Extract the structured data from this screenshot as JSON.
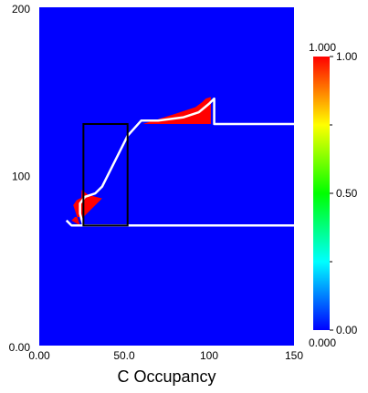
{
  "chart_data": {
    "type": "heatmap",
    "title": "",
    "xlabel": "C Occupancy",
    "ylabel": "",
    "xlim": [
      0,
      150
    ],
    "ylim": [
      0,
      200
    ],
    "x_ticks": [
      {
        "value": 0,
        "label": "0.00"
      },
      {
        "value": 50,
        "label": "50.0"
      },
      {
        "value": 100,
        "label": "100"
      },
      {
        "value": 150,
        "label": "150"
      }
    ],
    "y_ticks": [
      {
        "value": 0,
        "label": "0.00"
      },
      {
        "value": 100,
        "label": "100"
      },
      {
        "value": 200,
        "label": "200"
      }
    ],
    "background_value": 0.0,
    "colormap": [
      "#0000ff",
      "#00ffff",
      "#00ff00",
      "#ffff00",
      "#ff0000"
    ],
    "high_value_regions": [
      {
        "value": 1.0,
        "polygon": [
          [
            24,
            71
          ],
          [
            19,
            74
          ],
          [
            21,
            76
          ],
          [
            26,
            76
          ],
          [
            29,
            83
          ],
          [
            26,
            88
          ],
          [
            22,
            86
          ],
          [
            20,
            83
          ]
        ]
      },
      {
        "value": 1.0,
        "polygon": [
          [
            25,
            92
          ],
          [
            29,
            89
          ],
          [
            33,
            88
          ],
          [
            37,
            87
          ],
          [
            24,
            74
          ]
        ]
      },
      {
        "value": 1.0,
        "polygon": [
          [
            61,
            131
          ],
          [
            80,
            137
          ],
          [
            92,
            141
          ],
          [
            96,
            144
          ],
          [
            98,
            146
          ],
          [
            101,
            147
          ],
          [
            101,
            131
          ]
        ]
      }
    ],
    "boundary_line": [
      [
        16,
        74
      ],
      [
        19,
        71
      ],
      [
        26,
        71
      ],
      [
        24,
        78
      ],
      [
        24,
        84
      ],
      [
        27,
        88
      ],
      [
        33,
        90
      ],
      [
        37,
        94
      ],
      [
        52,
        124
      ],
      [
        60,
        133
      ],
      [
        70,
        133
      ],
      [
        85,
        135
      ],
      [
        94,
        138
      ],
      [
        100,
        143
      ],
      [
        103,
        146
      ],
      [
        103,
        131
      ],
      [
        150,
        131
      ]
    ],
    "lower_line": [
      [
        26,
        71
      ],
      [
        150,
        71
      ]
    ],
    "rectangle": {
      "x0": 26,
      "x1": 52,
      "y0": 71,
      "y1": 131
    },
    "colorbar": {
      "min": 0.0,
      "max": 1.0,
      "min_label": "0.000",
      "max_label": "1.000",
      "ticks": [
        {
          "value": 0.0,
          "label": "0.00"
        },
        {
          "value": 0.5,
          "label": "0.50"
        },
        {
          "value": 1.0,
          "label": "1.00"
        }
      ]
    }
  }
}
